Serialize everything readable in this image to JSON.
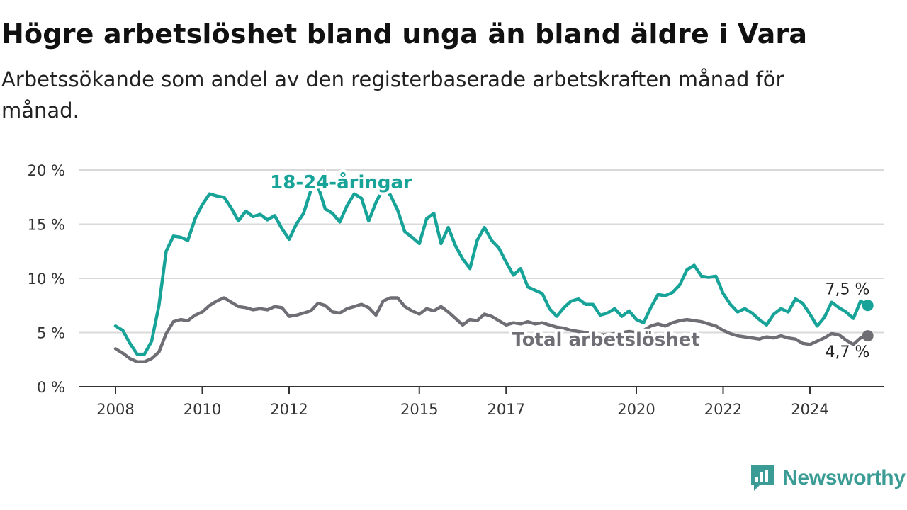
{
  "header": {
    "title": "Högre arbetslöshet bland unga än bland äldre i Vara",
    "subtitle": "Arbetssökande som andel av den registerbaserade arbetskraften månad för månad."
  },
  "brand": {
    "name": "Newsworthy",
    "icon": "bar-chart-speech-bubble-icon",
    "color": "#3a9c94"
  },
  "colors": {
    "youth": "#17a398",
    "total": "#6f6e75",
    "grid": "#d9d9d9",
    "axis": "#333333"
  },
  "chart_data": {
    "type": "line",
    "title": "Högre arbetslöshet bland unga än bland äldre i Vara",
    "subtitle": "Arbetssökande som andel av den registerbaserade arbetskraften månad för månad.",
    "xlabel": "",
    "ylabel": "",
    "x_ticks": [
      "2008",
      "2010",
      "2012",
      "2015",
      "2017",
      "2020",
      "2022",
      "2024"
    ],
    "y_ticks": [
      "0 %",
      "5 %",
      "10 %",
      "15 %",
      "20 %"
    ],
    "ylim": [
      0,
      20
    ],
    "xlim": [
      "2008-01",
      "2024-12"
    ],
    "grid": true,
    "series": [
      {
        "name": "18-24-åringar",
        "label_year": 2013.2,
        "end_label": "7,5 %",
        "points": [
          [
            "2008-01",
            5.6
          ],
          [
            "2008-03",
            5.2
          ],
          [
            "2008-05",
            4.0
          ],
          [
            "2008-07",
            3.0
          ],
          [
            "2008-09",
            3.0
          ],
          [
            "2008-11",
            4.2
          ],
          [
            "2009-01",
            7.5
          ],
          [
            "2009-03",
            12.5
          ],
          [
            "2009-05",
            13.9
          ],
          [
            "2009-07",
            13.8
          ],
          [
            "2009-09",
            13.5
          ],
          [
            "2009-11",
            15.5
          ],
          [
            "2010-01",
            16.8
          ],
          [
            "2010-03",
            17.8
          ],
          [
            "2010-05",
            17.6
          ],
          [
            "2010-07",
            17.5
          ],
          [
            "2010-09",
            16.5
          ],
          [
            "2010-11",
            15.3
          ],
          [
            "2011-01",
            16.2
          ],
          [
            "2011-03",
            15.7
          ],
          [
            "2011-05",
            15.9
          ],
          [
            "2011-07",
            15.4
          ],
          [
            "2011-09",
            15.8
          ],
          [
            "2011-11",
            14.6
          ],
          [
            "2012-01",
            13.6
          ],
          [
            "2012-03",
            15.0
          ],
          [
            "2012-05",
            16.0
          ],
          [
            "2012-07",
            18.1
          ],
          [
            "2012-09",
            18.5
          ],
          [
            "2012-11",
            16.4
          ],
          [
            "2013-01",
            16.0
          ],
          [
            "2013-03",
            15.2
          ],
          [
            "2013-05",
            16.7
          ],
          [
            "2013-07",
            17.8
          ],
          [
            "2013-09",
            17.4
          ],
          [
            "2013-11",
            15.3
          ],
          [
            "2014-01",
            17.0
          ],
          [
            "2014-03",
            18.3
          ],
          [
            "2014-05",
            17.7
          ],
          [
            "2014-07",
            16.3
          ],
          [
            "2014-09",
            14.3
          ],
          [
            "2014-11",
            13.8
          ],
          [
            "2015-01",
            13.2
          ],
          [
            "2015-03",
            15.5
          ],
          [
            "2015-05",
            16.0
          ],
          [
            "2015-07",
            13.2
          ],
          [
            "2015-09",
            14.7
          ],
          [
            "2015-11",
            13.0
          ],
          [
            "2016-01",
            11.8
          ],
          [
            "2016-03",
            10.9
          ],
          [
            "2016-05",
            13.5
          ],
          [
            "2016-07",
            14.7
          ],
          [
            "2016-09",
            13.5
          ],
          [
            "2016-11",
            12.8
          ],
          [
            "2017-01",
            11.5
          ],
          [
            "2017-03",
            10.3
          ],
          [
            "2017-05",
            10.9
          ],
          [
            "2017-07",
            9.2
          ],
          [
            "2017-09",
            8.9
          ],
          [
            "2017-11",
            8.6
          ],
          [
            "2018-01",
            7.2
          ],
          [
            "2018-03",
            6.5
          ],
          [
            "2018-05",
            7.3
          ],
          [
            "2018-07",
            7.9
          ],
          [
            "2018-09",
            8.1
          ],
          [
            "2018-11",
            7.6
          ],
          [
            "2019-01",
            7.6
          ],
          [
            "2019-03",
            6.6
          ],
          [
            "2019-05",
            6.8
          ],
          [
            "2019-07",
            7.2
          ],
          [
            "2019-09",
            6.5
          ],
          [
            "2019-11",
            7.0
          ],
          [
            "2020-01",
            6.2
          ],
          [
            "2020-03",
            5.9
          ],
          [
            "2020-05",
            7.3
          ],
          [
            "2020-07",
            8.5
          ],
          [
            "2020-09",
            8.4
          ],
          [
            "2020-11",
            8.7
          ],
          [
            "2021-01",
            9.4
          ],
          [
            "2021-03",
            10.8
          ],
          [
            "2021-05",
            11.2
          ],
          [
            "2021-07",
            10.2
          ],
          [
            "2021-09",
            10.1
          ],
          [
            "2021-11",
            10.2
          ],
          [
            "2022-01",
            8.6
          ],
          [
            "2022-03",
            7.6
          ],
          [
            "2022-05",
            6.9
          ],
          [
            "2022-07",
            7.2
          ],
          [
            "2022-09",
            6.8
          ],
          [
            "2022-11",
            6.2
          ],
          [
            "2023-01",
            5.7
          ],
          [
            "2023-03",
            6.7
          ],
          [
            "2023-05",
            7.2
          ],
          [
            "2023-07",
            6.9
          ],
          [
            "2023-09",
            8.1
          ],
          [
            "2023-11",
            7.7
          ],
          [
            "2024-01",
            6.7
          ],
          [
            "2024-03",
            5.6
          ],
          [
            "2024-05",
            6.4
          ],
          [
            "2024-07",
            7.8
          ],
          [
            "2024-09",
            7.3
          ],
          [
            "2024-11",
            6.9
          ],
          [
            "2025-01",
            6.3
          ],
          [
            "2025-03",
            7.9
          ],
          [
            "2025-05",
            7.5
          ]
        ]
      },
      {
        "name": "Total arbetslöshet",
        "label_year": 2019.3,
        "end_label": "4,7 %",
        "points": [
          [
            "2008-01",
            3.5
          ],
          [
            "2008-03",
            3.1
          ],
          [
            "2008-05",
            2.6
          ],
          [
            "2008-07",
            2.3
          ],
          [
            "2008-09",
            2.3
          ],
          [
            "2008-11",
            2.6
          ],
          [
            "2009-01",
            3.2
          ],
          [
            "2009-03",
            4.9
          ],
          [
            "2009-05",
            6.0
          ],
          [
            "2009-07",
            6.2
          ],
          [
            "2009-09",
            6.1
          ],
          [
            "2009-11",
            6.6
          ],
          [
            "2010-01",
            6.9
          ],
          [
            "2010-03",
            7.5
          ],
          [
            "2010-05",
            7.9
          ],
          [
            "2010-07",
            8.2
          ],
          [
            "2010-09",
            7.8
          ],
          [
            "2010-11",
            7.4
          ],
          [
            "2011-01",
            7.3
          ],
          [
            "2011-03",
            7.1
          ],
          [
            "2011-05",
            7.2
          ],
          [
            "2011-07",
            7.1
          ],
          [
            "2011-09",
            7.4
          ],
          [
            "2011-11",
            7.3
          ],
          [
            "2012-01",
            6.5
          ],
          [
            "2012-03",
            6.6
          ],
          [
            "2012-05",
            6.8
          ],
          [
            "2012-07",
            7.0
          ],
          [
            "2012-09",
            7.7
          ],
          [
            "2012-11",
            7.5
          ],
          [
            "2013-01",
            6.9
          ],
          [
            "2013-03",
            6.8
          ],
          [
            "2013-05",
            7.2
          ],
          [
            "2013-07",
            7.4
          ],
          [
            "2013-09",
            7.6
          ],
          [
            "2013-11",
            7.3
          ],
          [
            "2014-01",
            6.6
          ],
          [
            "2014-03",
            7.9
          ],
          [
            "2014-05",
            8.2
          ],
          [
            "2014-07",
            8.2
          ],
          [
            "2014-09",
            7.4
          ],
          [
            "2014-11",
            7.0
          ],
          [
            "2015-01",
            6.7
          ],
          [
            "2015-03",
            7.2
          ],
          [
            "2015-05",
            7.0
          ],
          [
            "2015-07",
            7.4
          ],
          [
            "2015-09",
            6.9
          ],
          [
            "2015-11",
            6.3
          ],
          [
            "2016-01",
            5.7
          ],
          [
            "2016-03",
            6.2
          ],
          [
            "2016-05",
            6.1
          ],
          [
            "2016-07",
            6.7
          ],
          [
            "2016-09",
            6.5
          ],
          [
            "2016-11",
            6.1
          ],
          [
            "2017-01",
            5.7
          ],
          [
            "2017-03",
            5.9
          ],
          [
            "2017-05",
            5.8
          ],
          [
            "2017-07",
            6.0
          ],
          [
            "2017-09",
            5.8
          ],
          [
            "2017-11",
            5.9
          ],
          [
            "2018-01",
            5.7
          ],
          [
            "2018-03",
            5.5
          ],
          [
            "2018-05",
            5.4
          ],
          [
            "2018-07",
            5.2
          ],
          [
            "2018-09",
            5.1
          ],
          [
            "2018-11",
            5.0
          ],
          [
            "2019-01",
            4.9
          ],
          [
            "2019-03",
            4.8
          ],
          [
            "2019-05",
            4.8
          ],
          [
            "2019-07",
            4.9
          ],
          [
            "2019-09",
            5.0
          ],
          [
            "2019-11",
            5.1
          ],
          [
            "2020-01",
            5.0
          ],
          [
            "2020-03",
            5.2
          ],
          [
            "2020-05",
            5.6
          ],
          [
            "2020-07",
            5.8
          ],
          [
            "2020-09",
            5.6
          ],
          [
            "2020-11",
            5.9
          ],
          [
            "2021-01",
            6.1
          ],
          [
            "2021-03",
            6.2
          ],
          [
            "2021-05",
            6.1
          ],
          [
            "2021-07",
            6.0
          ],
          [
            "2021-09",
            5.8
          ],
          [
            "2021-11",
            5.6
          ],
          [
            "2022-01",
            5.2
          ],
          [
            "2022-03",
            4.9
          ],
          [
            "2022-05",
            4.7
          ],
          [
            "2022-07",
            4.6
          ],
          [
            "2022-09",
            4.5
          ],
          [
            "2022-11",
            4.4
          ],
          [
            "2023-01",
            4.6
          ],
          [
            "2023-03",
            4.5
          ],
          [
            "2023-05",
            4.7
          ],
          [
            "2023-07",
            4.5
          ],
          [
            "2023-09",
            4.4
          ],
          [
            "2023-11",
            4.0
          ],
          [
            "2024-01",
            3.9
          ],
          [
            "2024-03",
            4.2
          ],
          [
            "2024-05",
            4.5
          ],
          [
            "2024-07",
            4.9
          ],
          [
            "2024-09",
            4.8
          ],
          [
            "2024-11",
            4.3
          ],
          [
            "2025-01",
            3.9
          ],
          [
            "2025-03",
            4.5
          ],
          [
            "2025-05",
            4.7
          ]
        ]
      }
    ]
  }
}
